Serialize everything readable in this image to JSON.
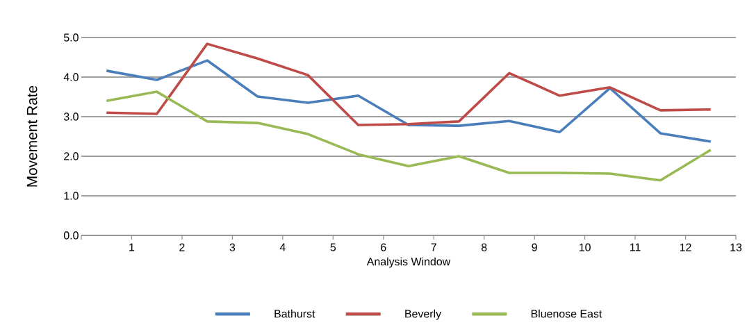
{
  "chart_data": {
    "type": "line",
    "xlabel": "Analysis Window",
    "ylabel": "Movement Rate",
    "x": [
      0.5,
      1.5,
      2.5,
      3.5,
      4.5,
      5.5,
      6.5,
      7.5,
      8.5,
      9.5,
      10.5,
      11.5,
      12.5
    ],
    "series": [
      {
        "name": "Bathurst",
        "color": "#4a7ebb",
        "values": [
          4.16,
          3.93,
          4.42,
          3.51,
          3.35,
          3.53,
          2.79,
          2.77,
          2.89,
          2.61,
          3.72,
          2.58,
          2.37
        ]
      },
      {
        "name": "Beverly",
        "color": "#be4b48",
        "values": [
          3.1,
          3.07,
          4.84,
          4.47,
          4.05,
          2.79,
          2.81,
          2.88,
          4.1,
          3.53,
          3.74,
          3.16,
          3.18
        ]
      },
      {
        "name": "Bluenose East",
        "color": "#98b954",
        "values": [
          3.4,
          3.63,
          2.88,
          2.84,
          2.56,
          2.05,
          1.75,
          2.0,
          1.58,
          1.58,
          1.56,
          1.39,
          2.16
        ]
      }
    ],
    "xlim": [
      0,
      13
    ],
    "xticks": [
      {
        "value": 0,
        "label": null
      },
      1,
      2,
      3,
      4,
      5,
      6,
      7,
      8,
      9,
      10,
      11,
      12,
      13
    ],
    "ylim": [
      0,
      5
    ],
    "yticks": [
      {
        "value": 0,
        "label": "0.0"
      },
      {
        "value": 1,
        "label": "1.0"
      },
      {
        "value": 2,
        "label": "2.0"
      },
      {
        "value": 3,
        "label": "3.0"
      },
      {
        "value": 4,
        "label": "4.0"
      },
      {
        "value": 5,
        "label": "5.0"
      }
    ],
    "grid": "y",
    "legend": "bottom",
    "marker": "none",
    "line_style": "solid"
  }
}
